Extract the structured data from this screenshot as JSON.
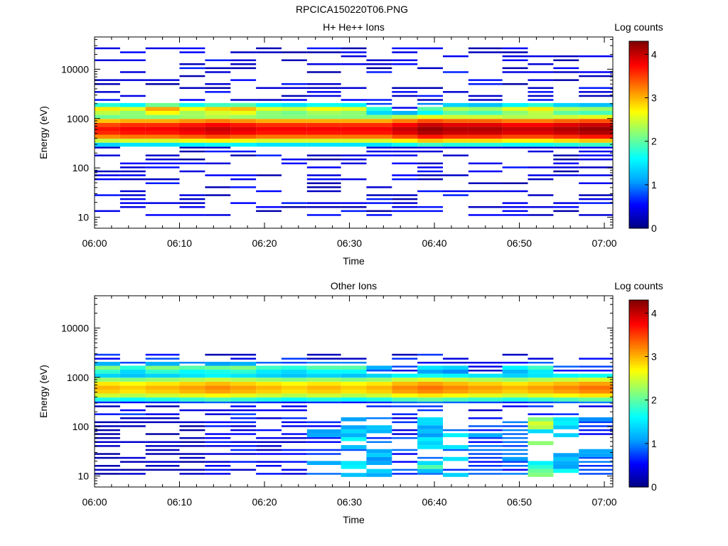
{
  "page": {
    "title": "RPCICA150220T06.PNG"
  },
  "colorscale": {
    "label": "Log counts",
    "min": 0,
    "max": 4.3,
    "ticks": [
      0,
      1,
      2,
      3,
      4
    ],
    "stops": [
      "#000080",
      "#0000ff",
      "#00a0ff",
      "#00ffff",
      "#80ff80",
      "#ffff00",
      "#ff8000",
      "#ff0000",
      "#800000"
    ]
  },
  "chart_data": [
    {
      "type": "heatmap",
      "title": "H+ He++ Ions",
      "xlabel": "Time",
      "ylabel": "Energy (eV)",
      "x_ticks": [
        "06:00",
        "06:10",
        "06:20",
        "06:30",
        "06:40",
        "06:50",
        "07:00"
      ],
      "x_range": [
        "06:00",
        "07:01"
      ],
      "y_ticks": [
        10,
        100,
        1000,
        10000
      ],
      "y_range": [
        6,
        45000
      ],
      "y_scale": "log",
      "colorbar_label": "Log counts",
      "colorbar_range": [
        0,
        4.3
      ],
      "time_bins": [
        "06:00",
        "06:03",
        "06:06",
        "06:10",
        "06:13",
        "06:16",
        "06:19",
        "06:22",
        "06:25",
        "06:29",
        "06:32",
        "06:35",
        "06:38",
        "06:41",
        "06:44",
        "06:48",
        "06:51",
        "06:54",
        "06:57"
      ],
      "profile": {
        "peak_energy_eV": 600,
        "peak_log_counts": [
          3.7,
          3.8,
          3.8,
          3.9,
          4.0,
          3.9,
          3.8,
          3.8,
          3.8,
          3.8,
          3.8,
          4.0,
          4.2,
          4.1,
          4.1,
          4.0,
          4.0,
          4.1,
          4.2
        ],
        "band_1500eV_log_counts": [
          2.8,
          2.6,
          3.1,
          2.7,
          2.9,
          3.0,
          2.6,
          2.5,
          2.7,
          2.6,
          1.8,
          0.5,
          2.0,
          2.4,
          2.3,
          2.6,
          2.8,
          2.4,
          2.3
        ],
        "sparse_range_eV": [
          10,
          30000
        ],
        "sparse_log_counts": 0.4
      }
    },
    {
      "type": "heatmap",
      "title": "Other Ions",
      "xlabel": "Time",
      "ylabel": "Energy (eV)",
      "x_ticks": [
        "06:00",
        "06:10",
        "06:20",
        "06:30",
        "06:40",
        "06:50",
        "07:00"
      ],
      "x_range": [
        "06:00",
        "07:01"
      ],
      "y_ticks": [
        10,
        100,
        1000,
        10000
      ],
      "y_range": [
        6,
        45000
      ],
      "y_scale": "log",
      "colorbar_label": "Log counts",
      "colorbar_range": [
        0,
        4.3
      ],
      "time_bins": [
        "06:00",
        "06:03",
        "06:06",
        "06:10",
        "06:13",
        "06:16",
        "06:19",
        "06:22",
        "06:25",
        "06:29",
        "06:32",
        "06:35",
        "06:38",
        "06:41",
        "06:44",
        "06:48",
        "06:51",
        "06:54",
        "06:57"
      ],
      "profile": {
        "peak_energy_eV": 600,
        "peak_log_counts": [
          3.0,
          2.9,
          3.0,
          3.1,
          3.2,
          3.1,
          3.0,
          2.9,
          3.0,
          2.9,
          3.0,
          3.2,
          3.3,
          3.2,
          3.1,
          3.0,
          3.1,
          3.2,
          3.3
        ],
        "band_1500eV_log_counts": [
          2.2,
          1.8,
          2.2,
          2.0,
          2.1,
          2.2,
          1.9,
          1.8,
          2.0,
          2.0,
          1.2,
          0.8,
          1.5,
          1.4,
          0.5,
          1.6,
          1.9,
          0.9,
          0.8
        ],
        "low_energy_range_eV": [
          10,
          150
        ],
        "low_energy_log_counts": [
          0.3,
          0.3,
          0.3,
          0.3,
          0.6,
          0.6,
          0.5,
          0.6,
          1.0,
          1.6,
          1.2,
          0.8,
          1.7,
          1.3,
          1.0,
          0.9,
          2.1,
          1.6,
          1.0
        ]
      }
    }
  ]
}
